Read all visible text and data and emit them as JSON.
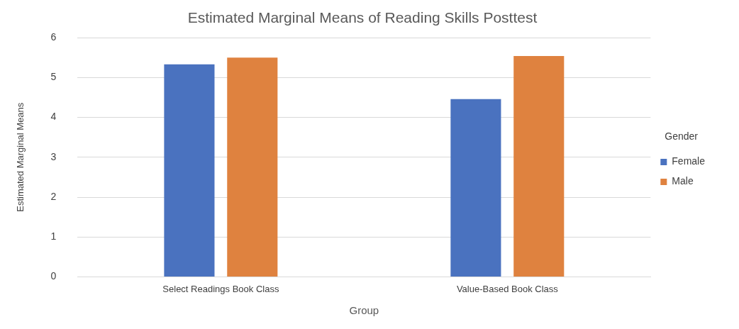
{
  "chart_data": {
    "type": "bar",
    "title": "Estimated Marginal Means of Reading Skills Posttest",
    "xlabel": "Group",
    "ylabel": "Estimated Marginal Means",
    "legend_title": "Gender",
    "categories": [
      "Select Readings Book Class",
      "Value-Based Book Class"
    ],
    "series": [
      {
        "name": "Female",
        "color": "#4a72bf",
        "values": [
          5.33,
          4.46
        ]
      },
      {
        "name": "Male",
        "color": "#df823f",
        "values": [
          5.5,
          5.54
        ]
      }
    ],
    "ylim": [
      0,
      6
    ],
    "yticks": [
      0,
      1,
      2,
      3,
      4,
      5,
      6
    ],
    "grid": "y",
    "legend": "right"
  }
}
